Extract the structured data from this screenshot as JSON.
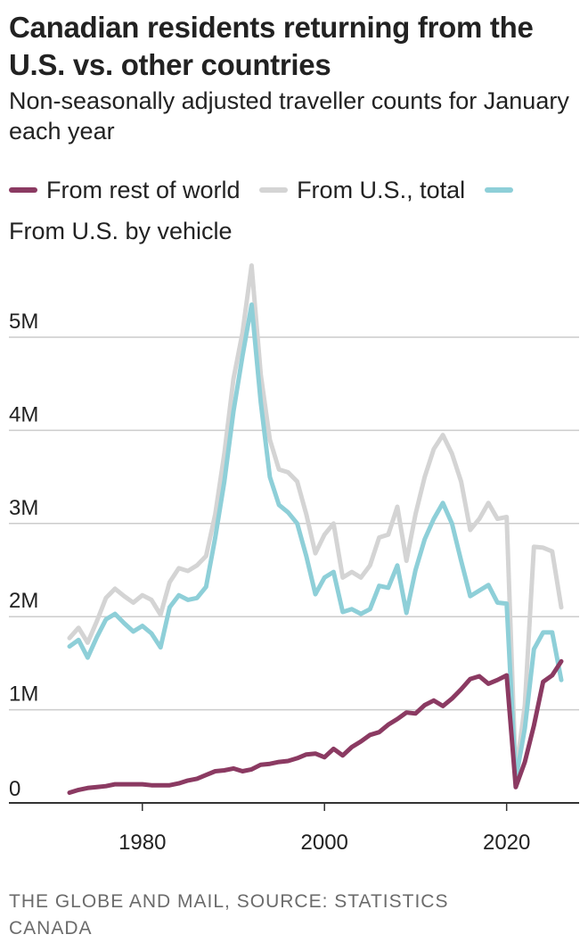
{
  "title": "Canadian residents returning from the U.S. vs. other countries",
  "subtitle": "Non-seasonally adjusted traveller counts for January each year",
  "source": "THE GLOBE AND MAIL, SOURCE: STATISTICS CANADA",
  "colors": {
    "rest_of_world": "#8b3a62",
    "us_total": "#d4d4d4",
    "us_vehicle": "#8ecfd8",
    "grid": "#cccccc",
    "axis": "#333333"
  },
  "legend": [
    {
      "label": "From rest of world",
      "color": "#8b3a62"
    },
    {
      "label": "From U.S., total",
      "color": "#d4d4d4"
    },
    {
      "label": "From U.S. by vehicle",
      "color": "#8ecfd8"
    }
  ],
  "chart_data": {
    "type": "line",
    "title": "Canadian residents returning from the U.S. vs. other countries",
    "subtitle": "Non-seasonally adjusted traveller counts for January each year",
    "xlabel": "",
    "ylabel": "",
    "xlim": [
      1972,
      2026
    ],
    "ylim": [
      0,
      5.8
    ],
    "x_ticks": [
      1980,
      2000,
      2020
    ],
    "x_tick_labels": [
      "1980",
      "2000",
      "2020"
    ],
    "y_ticks": [
      0,
      1,
      2,
      3,
      4,
      5
    ],
    "y_tick_labels": [
      "0",
      "1M",
      "2M",
      "3M",
      "4M",
      "5M"
    ],
    "grid": true,
    "x": [
      1972,
      1973,
      1974,
      1975,
      1976,
      1977,
      1978,
      1979,
      1980,
      1981,
      1982,
      1983,
      1984,
      1985,
      1986,
      1987,
      1988,
      1989,
      1990,
      1991,
      1992,
      1993,
      1994,
      1995,
      1996,
      1997,
      1998,
      1999,
      2000,
      2001,
      2002,
      2003,
      2004,
      2005,
      2006,
      2007,
      2008,
      2009,
      2010,
      2011,
      2012,
      2013,
      2014,
      2015,
      2016,
      2017,
      2018,
      2019,
      2020,
      2021,
      2022,
      2023,
      2024,
      2025,
      2026
    ],
    "series": [
      {
        "name": "From U.S., total",
        "values": [
          1.77,
          1.88,
          1.72,
          1.95,
          2.2,
          2.3,
          2.22,
          2.15,
          2.23,
          2.18,
          2.02,
          2.37,
          2.52,
          2.49,
          2.55,
          2.65,
          3.1,
          3.75,
          4.55,
          5.05,
          5.77,
          4.6,
          3.9,
          3.58,
          3.55,
          3.45,
          3.1,
          2.68,
          2.88,
          3.0,
          2.42,
          2.48,
          2.42,
          2.55,
          2.85,
          2.88,
          3.18,
          2.6,
          3.1,
          3.5,
          3.8,
          3.95,
          3.75,
          3.45,
          2.93,
          3.05,
          3.22,
          3.05,
          3.07,
          0.3,
          1.05,
          2.75,
          2.74,
          2.7,
          2.1
        ]
      },
      {
        "name": "From U.S. by vehicle",
        "values": [
          1.68,
          1.75,
          1.56,
          1.78,
          1.97,
          2.03,
          1.93,
          1.84,
          1.9,
          1.82,
          1.67,
          2.1,
          2.23,
          2.18,
          2.2,
          2.32,
          2.85,
          3.45,
          4.2,
          4.8,
          5.35,
          4.3,
          3.5,
          3.2,
          3.12,
          3.0,
          2.65,
          2.24,
          2.42,
          2.48,
          2.05,
          2.08,
          2.03,
          2.08,
          2.33,
          2.31,
          2.55,
          2.04,
          2.5,
          2.83,
          3.05,
          3.22,
          3.0,
          2.6,
          2.22,
          2.28,
          2.34,
          2.15,
          2.14,
          0.25,
          0.8,
          1.65,
          1.83,
          1.83,
          1.32
        ]
      },
      {
        "name": "From rest of world",
        "values": [
          0.11,
          0.14,
          0.16,
          0.17,
          0.18,
          0.2,
          0.2,
          0.2,
          0.2,
          0.19,
          0.19,
          0.19,
          0.21,
          0.24,
          0.26,
          0.3,
          0.34,
          0.35,
          0.37,
          0.34,
          0.36,
          0.41,
          0.42,
          0.44,
          0.45,
          0.48,
          0.52,
          0.53,
          0.49,
          0.58,
          0.51,
          0.6,
          0.66,
          0.73,
          0.76,
          0.84,
          0.9,
          0.97,
          0.96,
          1.05,
          1.1,
          1.04,
          1.12,
          1.22,
          1.33,
          1.36,
          1.28,
          1.32,
          1.37,
          0.17,
          0.44,
          0.83,
          1.3,
          1.37,
          1.52
        ]
      }
    ]
  }
}
